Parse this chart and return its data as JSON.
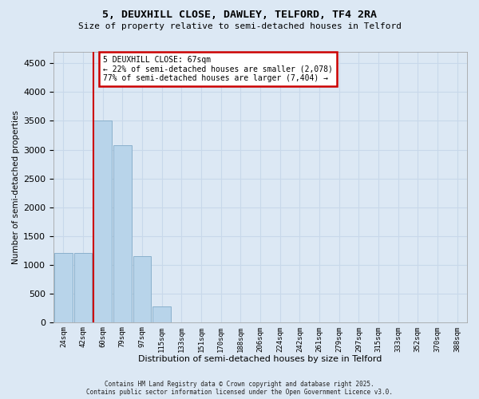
{
  "title_line1": "5, DEUXHILL CLOSE, DAWLEY, TELFORD, TF4 2RA",
  "title_line2": "Size of property relative to semi-detached houses in Telford",
  "xlabel": "Distribution of semi-detached houses by size in Telford",
  "ylabel": "Number of semi-detached properties",
  "categories": [
    "24sqm",
    "42sqm",
    "60sqm",
    "79sqm",
    "97sqm",
    "115sqm",
    "133sqm",
    "151sqm",
    "170sqm",
    "188sqm",
    "206sqm",
    "224sqm",
    "242sqm",
    "261sqm",
    "279sqm",
    "297sqm",
    "315sqm",
    "333sqm",
    "352sqm",
    "370sqm",
    "388sqm"
  ],
  "values": [
    1200,
    1200,
    3510,
    3080,
    1150,
    280,
    0,
    0,
    0,
    0,
    0,
    0,
    0,
    0,
    0,
    0,
    0,
    0,
    0,
    0,
    0
  ],
  "bar_color": "#b8d4ea",
  "bar_edge_color": "#8ab0cc",
  "ylim": [
    0,
    4700
  ],
  "yticks": [
    0,
    500,
    1000,
    1500,
    2000,
    2500,
    3000,
    3500,
    4000,
    4500
  ],
  "red_line_bin_index": 2,
  "property_label": "5 DEUXHILL CLOSE: 67sqm",
  "annotation_line1": "← 22% of semi-detached houses are smaller (2,078)",
  "annotation_line2": "77% of semi-detached houses are larger (7,404) →",
  "annotation_box_color": "#ffffff",
  "annotation_box_edge_color": "#cc0000",
  "red_line_color": "#cc0000",
  "grid_color": "#c8d8ea",
  "background_color": "#dce8f4",
  "footer_line1": "Contains HM Land Registry data © Crown copyright and database right 2025.",
  "footer_line2": "Contains public sector information licensed under the Open Government Licence v3.0."
}
